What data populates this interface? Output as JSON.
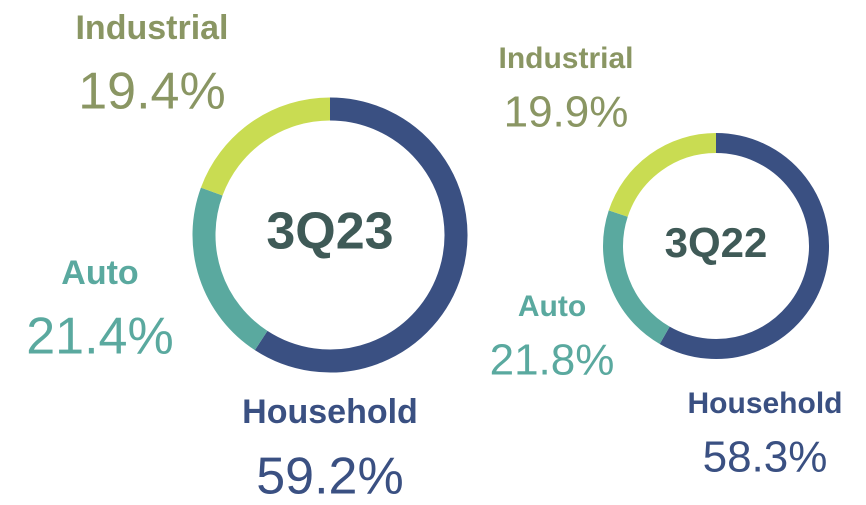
{
  "chart_data": [
    {
      "type": "donut",
      "title": "3Q23",
      "categories": [
        "Household",
        "Auto",
        "Industrial"
      ],
      "values": [
        59.2,
        21.4,
        19.4
      ],
      "value_labels": [
        "59.2%",
        "21.4%",
        "19.4%"
      ],
      "colors": [
        "#3a5082",
        "#5aa99f",
        "#c9dc52"
      ]
    },
    {
      "type": "donut",
      "title": "3Q22",
      "categories": [
        "Household",
        "Auto",
        "Industrial"
      ],
      "values": [
        58.3,
        21.8,
        19.9
      ],
      "value_labels": [
        "58.3%",
        "21.8%",
        "19.9%"
      ],
      "colors": [
        "#3a5082",
        "#5aa99f",
        "#c9dc52"
      ]
    }
  ]
}
